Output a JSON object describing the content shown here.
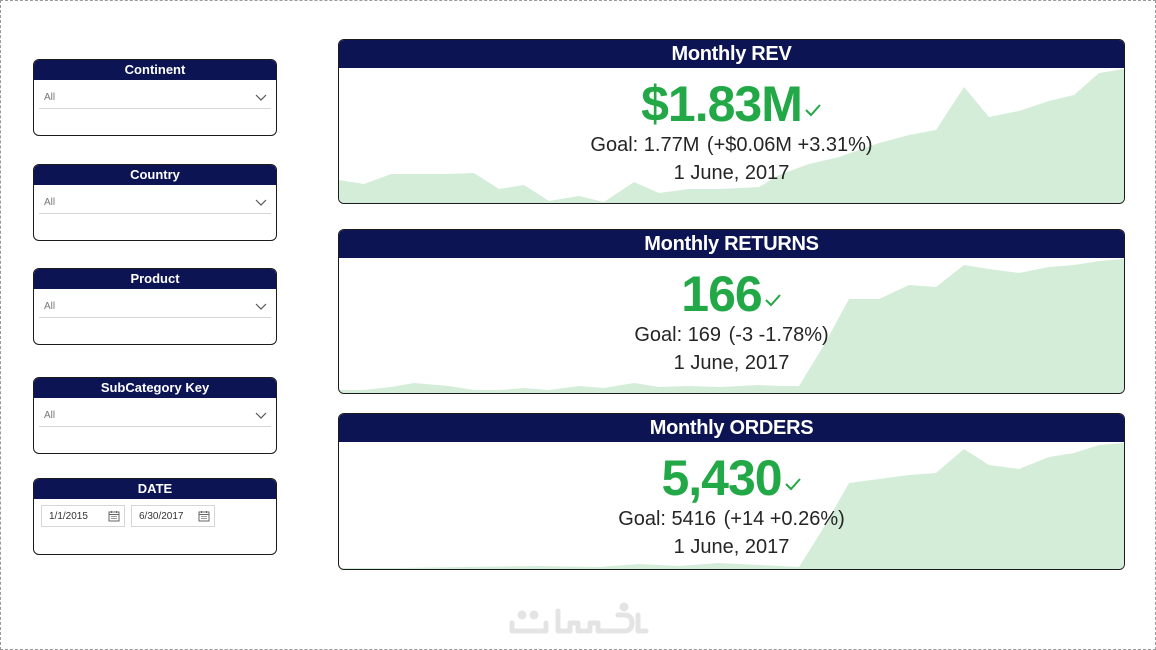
{
  "slicers": [
    {
      "title": "Continent",
      "value": "All"
    },
    {
      "title": "Country",
      "value": "All"
    },
    {
      "title": "Product",
      "value": "All"
    },
    {
      "title": "SubCategory Key",
      "value": "All"
    }
  ],
  "date_slicer": {
    "title": "DATE",
    "start": "1/1/2015",
    "end": "6/30/2017"
  },
  "kpis": [
    {
      "title": "Monthly REV",
      "value": "$1.83M",
      "goal_label": "Goal: 1.77M",
      "delta": "(+$0.06M  +3.31%)",
      "date": "1 June, 2017"
    },
    {
      "title": "Monthly RETURNS",
      "value": "166",
      "goal_label": "Goal: 169",
      "delta": "(-3  -1.78%)",
      "date": "1 June, 2017"
    },
    {
      "title": "Monthly ORDERS",
      "value": "5,430",
      "goal_label": "Goal: 5416",
      "delta": "(+14  +0.26%)",
      "date": "1 June, 2017"
    }
  ],
  "colors": {
    "header": "#0c1454",
    "kpi_good": "#22a846",
    "sparkline_fill": "#d4edd9"
  },
  "icons": {
    "dropdown": "chevron-down-icon",
    "calendar": "calendar-icon",
    "status": "checkmark-icon"
  },
  "watermark": "خمسات"
}
